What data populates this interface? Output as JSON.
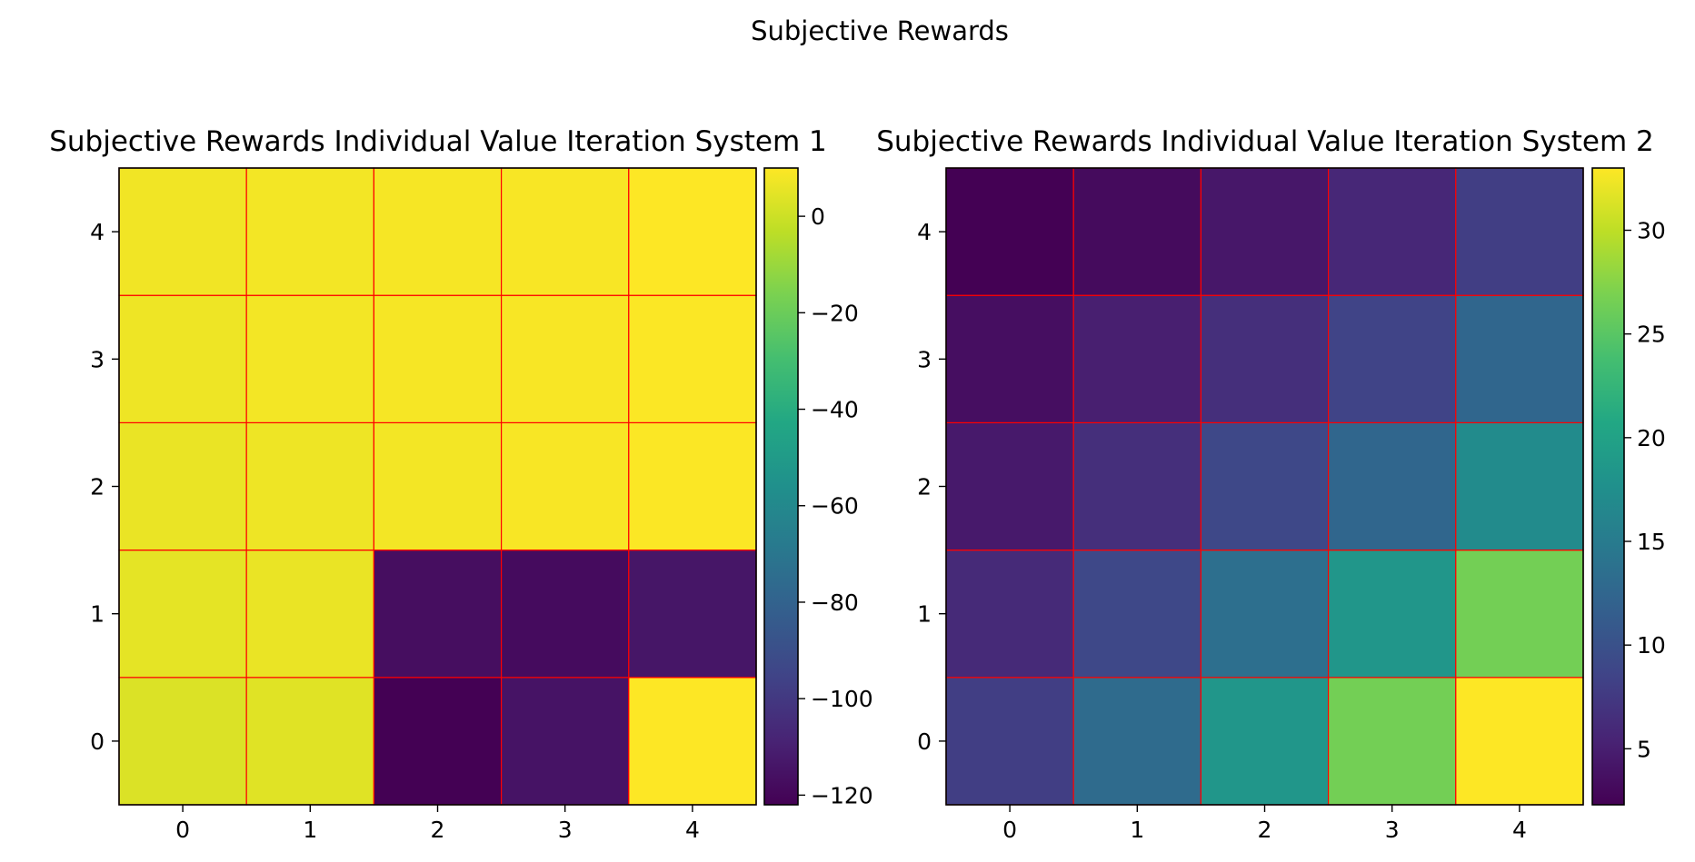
{
  "figure": {
    "suptitle": "Subjective Rewards"
  },
  "chart_data": [
    {
      "type": "heatmap",
      "title": "Subjective Rewards Individual Value Iteration System 1",
      "x": [
        0,
        1,
        2,
        3,
        4
      ],
      "y": [
        0,
        1,
        2,
        3,
        4
      ],
      "xticks": [
        "0",
        "1",
        "2",
        "3",
        "4"
      ],
      "yticks": [
        "0",
        "1",
        "2",
        "3",
        "4"
      ],
      "values": [
        [
          3,
          4,
          -122,
          -115,
          10
        ],
        [
          5,
          6,
          -117,
          -118,
          -114
        ],
        [
          6,
          7,
          8,
          9,
          9.5
        ],
        [
          7,
          8,
          8.5,
          9,
          9.5
        ],
        [
          7.5,
          8,
          8.5,
          9,
          10
        ]
      ],
      "colorbar": {
        "vmin": -122,
        "vmax": 10,
        "ticks": [
          0,
          -20,
          -40,
          -60,
          -80,
          -100,
          -120
        ],
        "tick_labels": [
          "0",
          "−20",
          "−40",
          "−60",
          "−80",
          "−100",
          "−120"
        ]
      },
      "colormap": "viridis",
      "grid_color": "#ff0000"
    },
    {
      "type": "heatmap",
      "title": "Subjective Rewards Individual Value Iteration System 2",
      "x": [
        0,
        1,
        2,
        3,
        4
      ],
      "y": [
        0,
        1,
        2,
        3,
        4
      ],
      "xticks": [
        "0",
        "1",
        "2",
        "3",
        "4"
      ],
      "yticks": [
        "0",
        "1",
        "2",
        "3",
        "4"
      ],
      "values": [
        [
          8,
          13,
          18.5,
          26.5,
          33
        ],
        [
          6,
          9,
          13.5,
          18.5,
          26.5
        ],
        [
          4.5,
          6.5,
          9,
          12.5,
          17
        ],
        [
          3.5,
          5,
          6.5,
          8.5,
          12.5
        ],
        [
          2.3,
          3.2,
          4.3,
          5.8,
          8
        ]
      ],
      "colorbar": {
        "vmin": 2.3,
        "vmax": 33,
        "ticks": [
          5,
          10,
          15,
          20,
          25,
          30
        ],
        "tick_labels": [
          "5",
          "10",
          "15",
          "20",
          "25",
          "30"
        ]
      },
      "colormap": "viridis",
      "grid_color": "#ff0000"
    }
  ]
}
